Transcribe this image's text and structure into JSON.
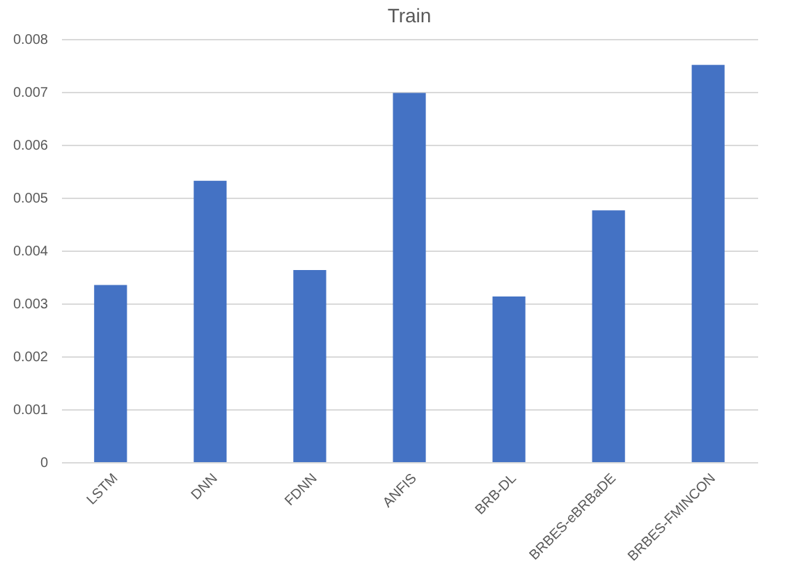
{
  "chart_data": {
    "type": "bar",
    "title": "Train",
    "categories": [
      "LSTM",
      "DNN",
      "FDNN",
      "ANFIS",
      "BRB-DL",
      "BRBES-eBRBaDE",
      "BRBES-FMINCON"
    ],
    "values": [
      0.00335,
      0.00532,
      0.00363,
      0.00698,
      0.00313,
      0.00476,
      0.00751
    ],
    "color": "#4472c4",
    "ylim": [
      0,
      0.008
    ],
    "yticks": [
      0,
      0.001,
      0.002,
      0.003,
      0.004,
      0.005,
      0.006,
      0.007,
      0.008
    ],
    "grid": "y"
  }
}
